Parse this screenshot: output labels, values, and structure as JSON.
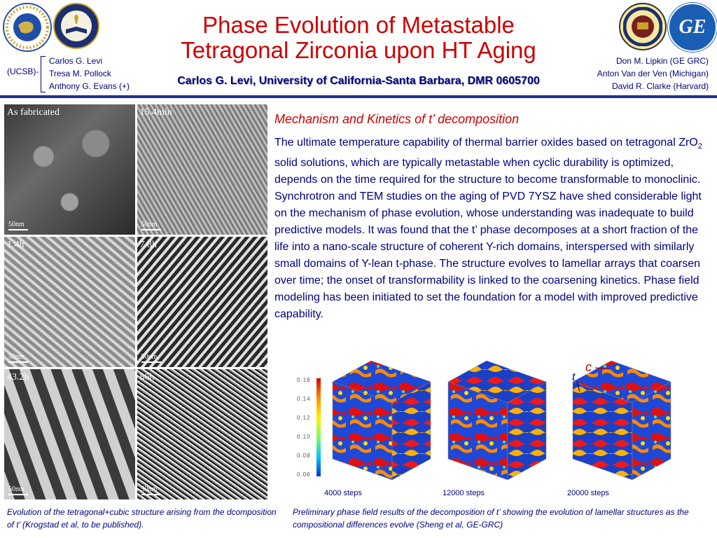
{
  "header": {
    "title_line1": "Phase Evolution of Metastable",
    "title_line2": "Tetragonal Zirconia upon HT Aging",
    "subtitle": "Carlos G. Levi, University of California-Santa Barbara, DMR 0605700",
    "ucsb_label": "(UCSB)-",
    "left_authors": [
      "Carlos G. Levi",
      "Tresa M. Pollock",
      "Anthony G. Evans (+)"
    ],
    "right_authors": [
      "Don M. Lipkin (GE GRC)",
      "Anton Van der Ven (Michigan)",
      "David R. Clarke (Harvard)"
    ]
  },
  "logos": {
    "nsf": {
      "text_ring": "NATIONAL · SCIENCE · FOUNDATION",
      "inner": "NSF"
    },
    "uc": {
      "text_ring": "THE UNIVERSITY OF CALIFORNIA"
    },
    "umich": {
      "text_ring": "THE UNIVERSITY OF MICHIGAN",
      "year": "1817"
    },
    "ge": {
      "text": "GE"
    }
  },
  "tem_panels": [
    {
      "label": "As fabricated",
      "scale": "50nm"
    },
    {
      "label": "15.4min",
      "scale": "50nm"
    },
    {
      "label": "1.4h",
      "scale": "50nm"
    },
    {
      "label": "7.8h",
      "scale": "50nm"
    },
    {
      "label": "43.2h",
      "scale": "50nm"
    },
    {
      "label": "86h",
      "scale": "50nm"
    }
  ],
  "mechanism": {
    "heading": "Mechanism and Kinetics of t’ decomposition",
    "p_before_sub": "The ultimate temperature capability of thermal barrier oxides based on tetragonal ZrO",
    "sub": "2",
    "p_after_sub": " solid solutions, which are typically metastable when cyclic durability is optimized, depends on the time required for the structure to become transformable to monoclinic. Synchrotron and TEM studies on the aging of PVD 7YSZ have shed considerable light on the mechanism of phase evolution, whose understanding was inadequate to build predictive models.  It was found that the t’ phase decomposes at a short fraction of the life into a nano-scale structure of coherent Y-rich domains, interspersed with similarly small domains of Y-lean t-phase. The structure evolves to lamellar arrays that coarsen over time; the onset of transformability is linked to the coarsening kinetics.  Phase field modeling has been initiated to set the foundation for a model with improved predictive capability."
  },
  "colorbar_ticks": [
    "0.16",
    "0.14",
    "0.12",
    "0.10",
    "0.08",
    "0.06"
  ],
  "cubes": [
    {
      "label": "4000 steps"
    },
    {
      "label": "12000 steps"
    },
    {
      "label": "20000 steps"
    }
  ],
  "cube_annotations": {
    "c": "c",
    "t": "t"
  },
  "captions": {
    "left": "Evolution of the tetragonal+cubic structure arising from the dcomposition of t’ (Krogstad et al, to be published).",
    "right": "Preliminary phase field results of the decomposition of t’ showing the evolution of lamellar structures as the compositional differences evolve  (Sheng et al, GE-GRC)"
  },
  "colors": {
    "title": "#cc0000",
    "text": "#000080",
    "rule": "#1f2f8f",
    "ge_blue": "#1a5fb4"
  }
}
